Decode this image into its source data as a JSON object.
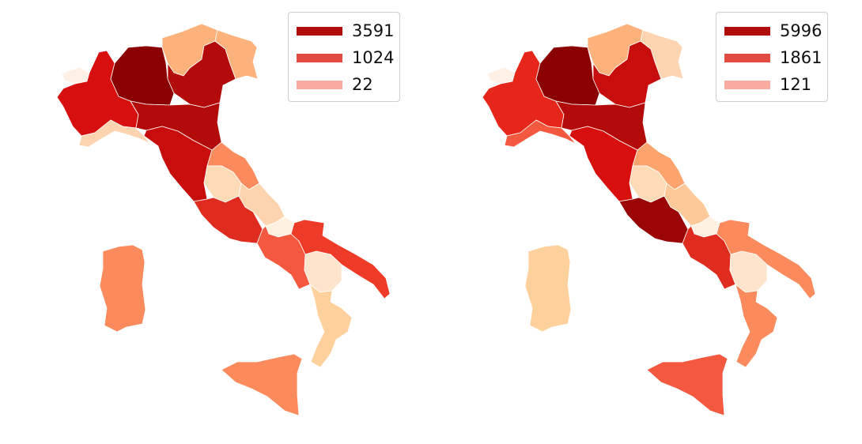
{
  "maps": [
    {
      "legend": [
        {
          "label": "3591",
          "color": "#b10c0c"
        },
        {
          "label": "1024",
          "color": "#e24a3f"
        },
        {
          "label": "22",
          "color": "#fbaaa2"
        }
      ],
      "region_colors": {
        "valle_daosta": "#fff0e6",
        "piemonte": "#d70f0f",
        "liguria": "#fdd3b0",
        "lombardia": "#8b0000",
        "trentino": "#fdb27b",
        "veneto": "#b30a0a",
        "friuli": "#fdb27b",
        "emilia_romagna": "#b30a0a",
        "toscana": "#c80d0d",
        "marche": "#fb8a5c",
        "umbria": "#fddbb6",
        "lazio": "#e02c1e",
        "abruzzo": "#fdd4ad",
        "molise": "#fff0e0",
        "campania": "#f4583e",
        "puglia": "#ee3b28",
        "basilicata": "#fee4cc",
        "calabria": "#fdd09c",
        "sicilia": "#fb8a5c",
        "sardegna": "#fb8a5c"
      }
    },
    {
      "legend": [
        {
          "label": "5996",
          "color": "#b10c0c"
        },
        {
          "label": "1861",
          "color": "#e24a3f"
        },
        {
          "label": "121",
          "color": "#fbaaa2"
        }
      ],
      "region_colors": {
        "valle_daosta": "#fff0e6",
        "piemonte": "#e6261b",
        "liguria": "#f4583e",
        "lombardia": "#8b0000",
        "trentino": "#fdb27b",
        "veneto": "#c80d0d",
        "friuli": "#fdd3b0",
        "emilia_romagna": "#b30a0a",
        "toscana": "#d70f0f",
        "marche": "#fca36e",
        "umbria": "#fddbb6",
        "lazio": "#9b0505",
        "abruzzo": "#fdc998",
        "molise": "#fff0e0",
        "campania": "#e02c1e",
        "puglia": "#fb8a5c",
        "basilicata": "#fee4cc",
        "calabria": "#fb8a5c",
        "sicilia": "#f4583e",
        "sardegna": "#fdd09c"
      }
    }
  ]
}
